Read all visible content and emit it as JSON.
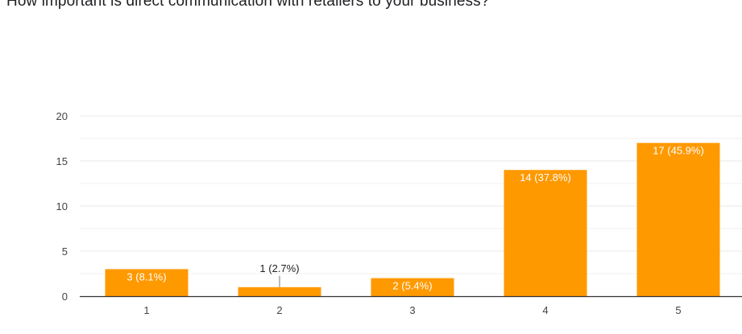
{
  "question": {
    "title": "How important is direct communication with retailers to your business?"
  },
  "chart_data": {
    "type": "bar",
    "categories": [
      "1",
      "2",
      "3",
      "4",
      "5"
    ],
    "values": [
      3,
      1,
      2,
      14,
      17
    ],
    "data_labels": [
      "3 (8.1%)",
      "1 (2.7%)",
      "2 (5.4%)",
      "14 (37.8%)",
      "17 (45.9%)"
    ],
    "y_ticks": [
      "0",
      "5",
      "10",
      "15",
      "20"
    ],
    "ylim": [
      0,
      20
    ],
    "grid": true,
    "legend": "none",
    "colors": {
      "bar": "#ff9900",
      "grid": "#e8e8e8",
      "axis": "#333333",
      "label_inside": "#ffffff",
      "label_outside": "#222222"
    }
  }
}
